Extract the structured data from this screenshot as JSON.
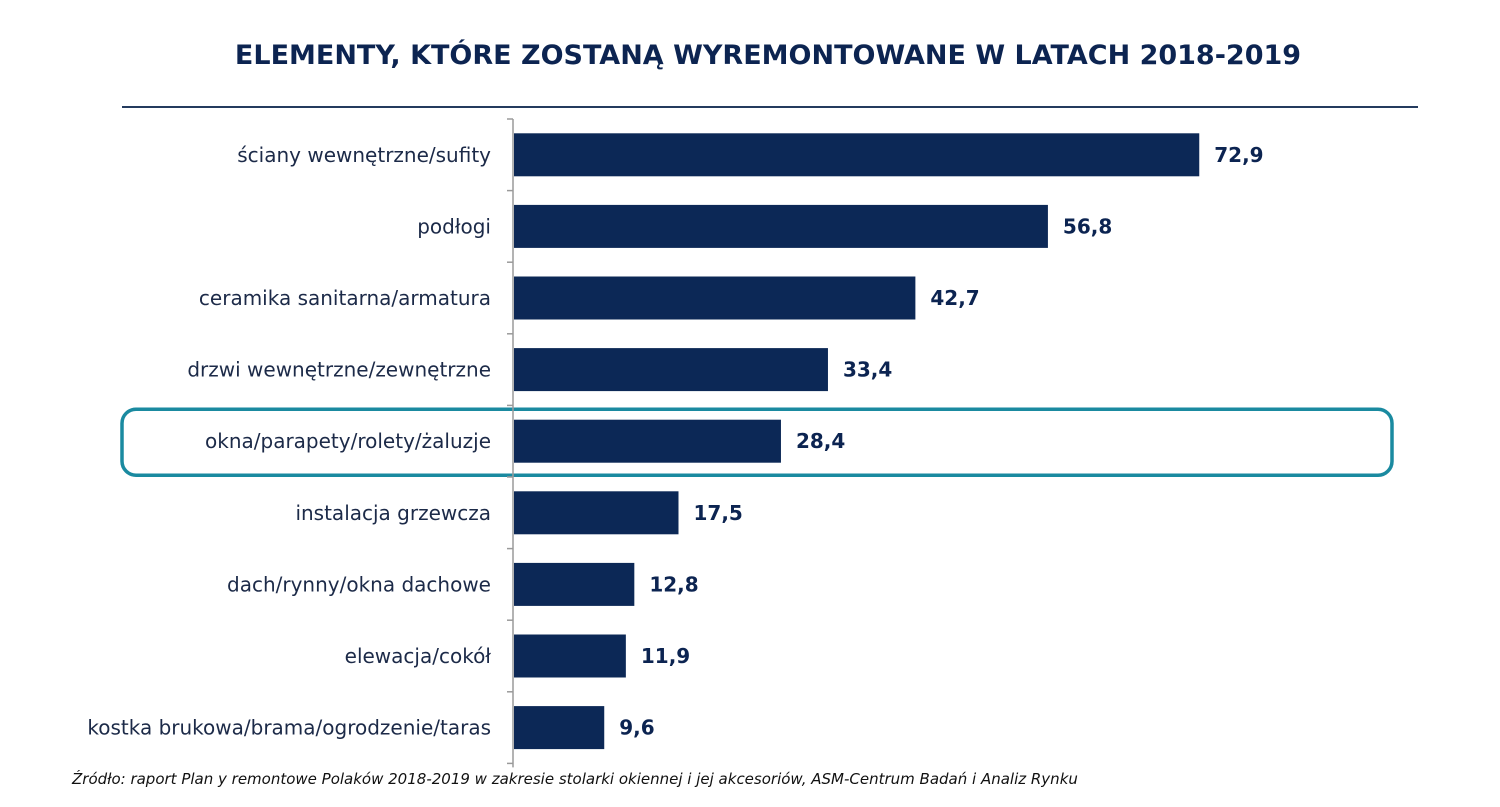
{
  "chart_data": {
    "type": "bar",
    "orientation": "horizontal",
    "title": "ELEMENTY, KTÓRE ZOSTANĄ WYREMONTOWANE  W LATACH 2018-2019",
    "categories": [
      "ściany wewnętrzne/sufity",
      "podłogi",
      "ceramika sanitarna/armatura",
      "drzwi wewnętrzne/zewnętrzne",
      "okna/parapety/rolety/żaluzje",
      "instalacja grzewcza",
      "dach/rynny/okna dachowe",
      "elewacja/cokół",
      "kostka brukowa/brama/ogrodzenie/taras"
    ],
    "values": [
      72.9,
      56.8,
      42.7,
      33.4,
      28.4,
      17.5,
      12.8,
      11.9,
      9.6
    ],
    "value_labels": [
      "72,9",
      "56,8",
      "42,7",
      "33,4",
      "28,4",
      "17,5",
      "12,8",
      "11,9",
      "9,6"
    ],
    "xlim": [
      0,
      100
    ],
    "highlighted_category": "okna/parapety/rolety/żaluzje",
    "grid": false,
    "legend": "none",
    "bar_color": "#0c2856",
    "highlight_color": "#1a8aa0",
    "source": "Źródło: raport  Plan y remontowe Polaków 2018-2019 w zakresie stolarki okiennej i jej akcesoriów, ASM-Centrum Badań i Analiz Rynku"
  }
}
